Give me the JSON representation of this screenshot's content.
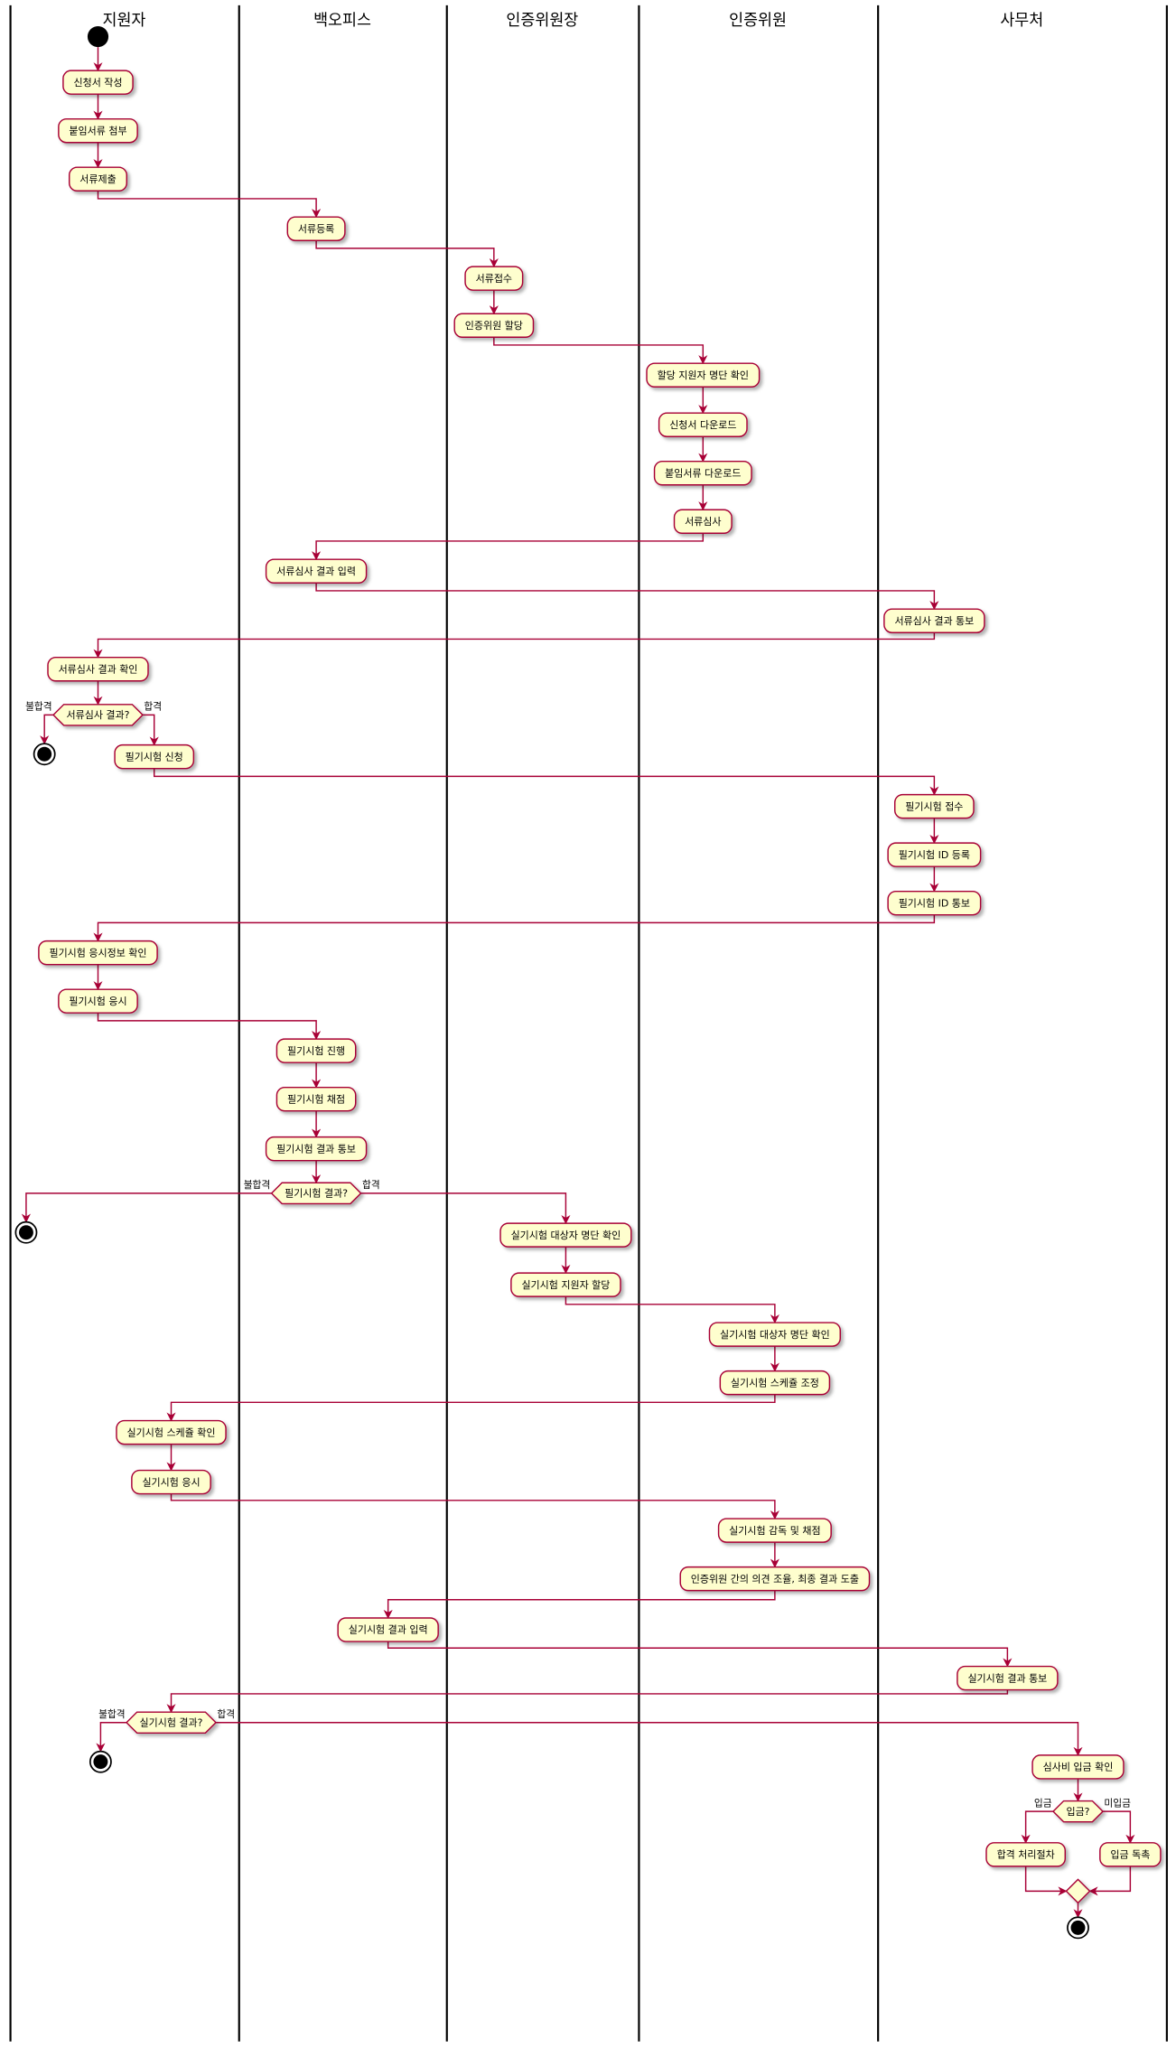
{
  "lanes": [
    "지원자",
    "백오피스",
    "인증위원장",
    "인증위원",
    "사무처"
  ],
  "activities": [
    "신청서 작성",
    "붙임서류 첨부",
    "서류제출",
    "서류등록",
    "서류접수",
    "인증위원 할당",
    "할당 지원자 명단 확인",
    "신청서 다운로드",
    "붙임서류 다운로드",
    "서류심사",
    "서류심사 결과 입력",
    "서류심사 결과 통보",
    "서류심사 결과 확인",
    "필기시험 신청",
    "필기시험 접수",
    "필기시험 ID 등록",
    "필기시험 ID 통보",
    "필기시험 응시정보 확인",
    "필기시험 응시",
    "필기시험 진행",
    "필기시험 채점",
    "필기시험 결과 통보",
    "실기시험 대상자 명단 확인",
    "실기시험 지원자 할당",
    "실기시험 대상자 명단 확인",
    "실기시험 스케쥴 조정",
    "실기시험 스케쥴 확인",
    "실기시험 응시",
    "실기시험 감독 및 채점",
    "인증위원 간의 의견 조율, 최종 결과 도출",
    "실기시험 결과 입력",
    "실기시험 결과 통보",
    "심사비 입금 확인",
    "합격 처리절차",
    "입금 독촉"
  ],
  "decisions": [
    {
      "label": "서류심사 결과?",
      "left": "불합격",
      "right": "합격"
    },
    {
      "label": "필기시험 결과?",
      "left": "불합격",
      "right": "합격"
    },
    {
      "label": "실기시험 결과?",
      "left": "불합격",
      "right": "합격"
    },
    {
      "label": "입금?",
      "left": "입금",
      "right": "미입금"
    }
  ]
}
